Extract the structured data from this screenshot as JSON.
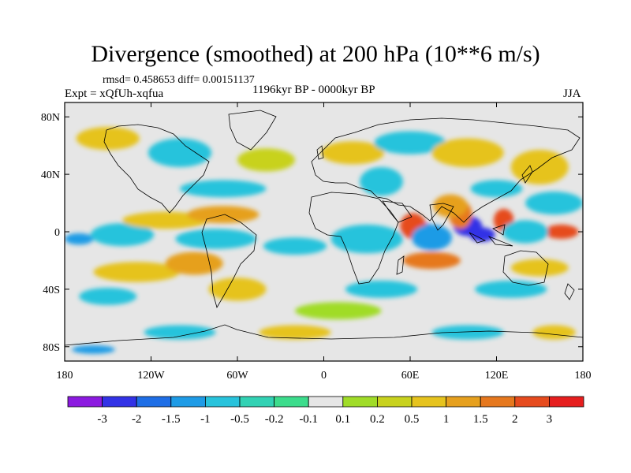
{
  "title": "Divergence (smoothed) at 200 hPa (10**6 m/s)",
  "stats": "rmsd= 0.458653 diff= 0.00151137",
  "experiment": "Expt = xQfUh-xqfua",
  "period": "1196kyr BP - 0000kyr BP",
  "season": "JJA",
  "map": {
    "y_ticks": [
      {
        "label": "80N",
        "lat": 80
      },
      {
        "label": "40N",
        "lat": 40
      },
      {
        "label": "0",
        "lat": 0
      },
      {
        "label": "40S",
        "lat": -40
      },
      {
        "label": "80S",
        "lat": -80
      }
    ],
    "x_ticks": [
      {
        "label": "180",
        "lon": -180
      },
      {
        "label": "120W",
        "lon": -120
      },
      {
        "label": "60W",
        "lon": -60
      },
      {
        "label": "0",
        "lon": 0
      },
      {
        "label": "60E",
        "lon": 60
      },
      {
        "label": "120E",
        "lon": 120
      },
      {
        "label": "180",
        "lon": 180
      }
    ],
    "lon_range": [
      -180,
      180
    ],
    "lat_range": [
      -90,
      90
    ]
  },
  "colorbar": {
    "colors": [
      "#8c1ae0",
      "#3232e6",
      "#1e6ee6",
      "#1e9be6",
      "#28c3dc",
      "#32d2b4",
      "#3cdc8c",
      "#e6e6e6",
      "#a0dc28",
      "#c8d21e",
      "#e6c31e",
      "#e6a01e",
      "#e6781e",
      "#e64b1e",
      "#e61e1e"
    ],
    "labels": [
      "-3",
      "-2",
      "-1.5",
      "-1",
      "-0.5",
      "-0.2",
      "-0.1",
      "0.1",
      "0.2",
      "0.5",
      "1",
      "1.5",
      "2",
      "3"
    ]
  },
  "blobs": [
    {
      "lon": 70,
      "lat": 0,
      "rx": 8,
      "ry": 6,
      "color": "#3232e6"
    },
    {
      "lon": 62,
      "lat": 4,
      "rx": 9,
      "ry": 9,
      "color": "#e64b1e"
    },
    {
      "lon": 75,
      "lat": -4,
      "rx": 14,
      "ry": 9,
      "color": "#1e9be6"
    },
    {
      "lon": 100,
      "lat": 4,
      "rx": 10,
      "ry": 7,
      "color": "#3232e6"
    },
    {
      "lon": 110,
      "lat": -2,
      "rx": 9,
      "ry": 5,
      "color": "#3232e6"
    },
    {
      "lon": 125,
      "lat": 8,
      "rx": 7,
      "ry": 8,
      "color": "#e64b1e"
    },
    {
      "lon": 95,
      "lat": 12,
      "rx": 8,
      "ry": 10,
      "color": "#e6781e"
    },
    {
      "lon": 88,
      "lat": 18,
      "rx": 12,
      "ry": 8,
      "color": "#e6a01e"
    },
    {
      "lon": 165,
      "lat": 0,
      "rx": 12,
      "ry": 5,
      "color": "#e64b1e"
    },
    {
      "lon": 140,
      "lat": 0,
      "rx": 16,
      "ry": 8,
      "color": "#28c3dc"
    },
    {
      "lon": 75,
      "lat": -20,
      "rx": 20,
      "ry": 6,
      "color": "#e6781e"
    },
    {
      "lon": 30,
      "lat": -5,
      "rx": 25,
      "ry": 10,
      "color": "#28c3dc"
    },
    {
      "lon": -170,
      "lat": -5,
      "rx": 10,
      "ry": 4,
      "color": "#1e9be6"
    },
    {
      "lon": -140,
      "lat": -2,
      "rx": 22,
      "ry": 8,
      "color": "#28c3dc"
    },
    {
      "lon": -110,
      "lat": 8,
      "rx": 30,
      "ry": 6,
      "color": "#e6c31e"
    },
    {
      "lon": -70,
      "lat": 12,
      "rx": 25,
      "ry": 6,
      "color": "#e6a01e"
    },
    {
      "lon": -75,
      "lat": -5,
      "rx": 28,
      "ry": 7,
      "color": "#28c3dc"
    },
    {
      "lon": -20,
      "lat": -10,
      "rx": 22,
      "ry": 6,
      "color": "#28c3dc"
    },
    {
      "lon": -130,
      "lat": -28,
      "rx": 30,
      "ry": 7,
      "color": "#e6c31e"
    },
    {
      "lon": -90,
      "lat": -22,
      "rx": 20,
      "ry": 8,
      "color": "#e6a01e"
    },
    {
      "lon": -60,
      "lat": -40,
      "rx": 20,
      "ry": 8,
      "color": "#e6c31e"
    },
    {
      "lon": -150,
      "lat": -45,
      "rx": 20,
      "ry": 6,
      "color": "#28c3dc"
    },
    {
      "lon": -150,
      "lat": 65,
      "rx": 22,
      "ry": 8,
      "color": "#e6c31e"
    },
    {
      "lon": -100,
      "lat": 55,
      "rx": 22,
      "ry": 10,
      "color": "#28c3dc"
    },
    {
      "lon": -70,
      "lat": 30,
      "rx": 30,
      "ry": 6,
      "color": "#28c3dc"
    },
    {
      "lon": -40,
      "lat": 50,
      "rx": 20,
      "ry": 8,
      "color": "#c8d21e"
    },
    {
      "lon": 20,
      "lat": 55,
      "rx": 22,
      "ry": 8,
      "color": "#e6c31e"
    },
    {
      "lon": 60,
      "lat": 62,
      "rx": 25,
      "ry": 8,
      "color": "#28c3dc"
    },
    {
      "lon": 40,
      "lat": 35,
      "rx": 15,
      "ry": 10,
      "color": "#28c3dc"
    },
    {
      "lon": 100,
      "lat": 55,
      "rx": 25,
      "ry": 10,
      "color": "#e6c31e"
    },
    {
      "lon": 150,
      "lat": 45,
      "rx": 20,
      "ry": 12,
      "color": "#e6c31e"
    },
    {
      "lon": 160,
      "lat": 20,
      "rx": 20,
      "ry": 8,
      "color": "#28c3dc"
    },
    {
      "lon": 120,
      "lat": 30,
      "rx": 18,
      "ry": 6,
      "color": "#28c3dc"
    },
    {
      "lon": 150,
      "lat": -25,
      "rx": 20,
      "ry": 6,
      "color": "#e6c31e"
    },
    {
      "lon": 130,
      "lat": -40,
      "rx": 25,
      "ry": 6,
      "color": "#28c3dc"
    },
    {
      "lon": 40,
      "lat": -40,
      "rx": 25,
      "ry": 6,
      "color": "#28c3dc"
    },
    {
      "lon": 10,
      "lat": -55,
      "rx": 30,
      "ry": 6,
      "color": "#a0dc28"
    },
    {
      "lon": -20,
      "lat": -70,
      "rx": 25,
      "ry": 5,
      "color": "#e6c31e"
    },
    {
      "lon": 100,
      "lat": -70,
      "rx": 25,
      "ry": 5,
      "color": "#28c3dc"
    },
    {
      "lon": -100,
      "lat": -70,
      "rx": 25,
      "ry": 5,
      "color": "#28c3dc"
    },
    {
      "lon": 160,
      "lat": -70,
      "rx": 15,
      "ry": 5,
      "color": "#e6c31e"
    },
    {
      "lon": -160,
      "lat": -82,
      "rx": 15,
      "ry": 3,
      "color": "#1e9be6"
    }
  ]
}
